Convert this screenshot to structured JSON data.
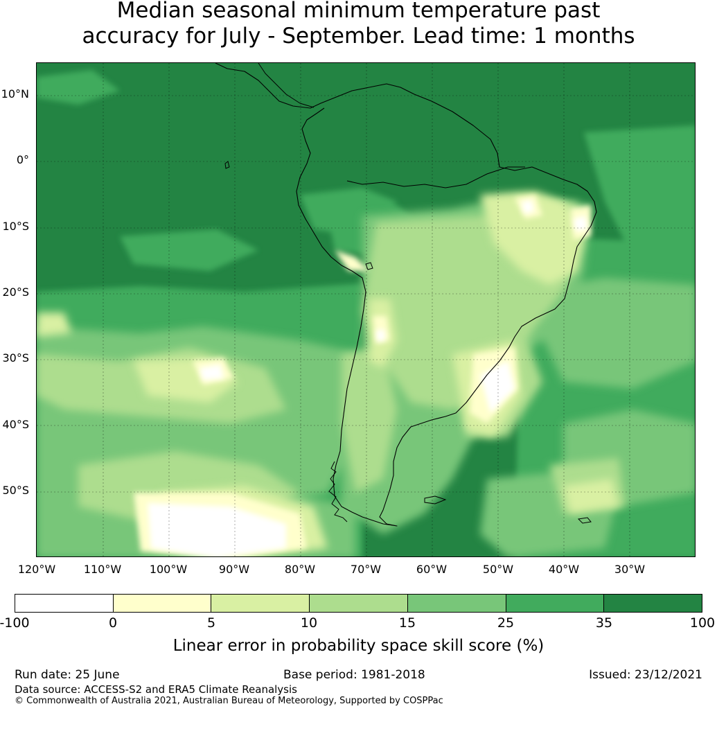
{
  "title": {
    "line1": "Median seasonal minimum temperature past",
    "line2": "accuracy for July - September. Lead time: 1 months"
  },
  "map": {
    "latitude_labels": [
      "10°N",
      "0°",
      "10°S",
      "20°S",
      "30°S",
      "40°S",
      "50°S"
    ],
    "longitude_labels": [
      "120°W",
      "110°W",
      "100°W",
      "90°W",
      "80°W",
      "70°W",
      "60°W",
      "50°W",
      "40°W",
      "30°W"
    ],
    "colors": {
      "ocean_base": "#1f8542",
      "land_coast": "#000000",
      "gridline": "#000000"
    }
  },
  "colorbar": {
    "tick_labels": [
      "-100",
      "0",
      "5",
      "10",
      "15",
      "25",
      "35",
      "100"
    ],
    "colors": [
      "#ffffff",
      "#ffffcc",
      "#d9f0a3",
      "#addd8e",
      "#78c679",
      "#41ab5d",
      "#238443"
    ],
    "label": "Linear error in probability space skill score (%)"
  },
  "footer": {
    "run_date": "Run date: 25 June",
    "base_period": "Base period: 1981-2018",
    "issued": "Issued: 23/12/2021",
    "data_source": "Data source: ACCESS-S2 and ERA5 Climate Reanalysis",
    "copyright": "© Commonwealth of Australia 2021, Australian Bureau of Meteorology, Supported by COSPPac"
  }
}
